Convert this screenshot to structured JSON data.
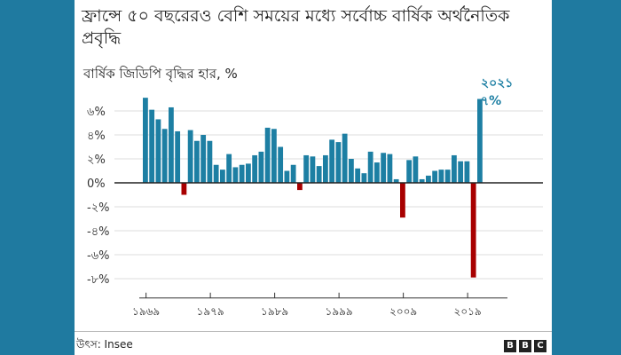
{
  "title": "ফ্রান্সে ৫০ বছরেরও বেশি সময়ের মধ্যে সর্বোচ্চ বার্ষিক অর্থনৈতিক প্রবৃদ্ধি",
  "source": "উৎস: Insee",
  "brand": [
    "B",
    "B",
    "C"
  ],
  "colors": {
    "positive": "#1d7fa3",
    "negative": "#a80000",
    "background": "#1f7aa0"
  },
  "chart_data": {
    "type": "bar",
    "ylabel": "বার্ষিক জিডিপি বৃদ্ধির হার, %",
    "ylim": [
      -8.5,
      8
    ],
    "yticks": [
      6,
      4,
      2,
      0,
      -2,
      -4,
      -6,
      -8
    ],
    "ytick_labels": [
      "৬%",
      "৪%",
      "২%",
      "0%",
      "-২%",
      "-৪%",
      "-৬%",
      "-৮%"
    ],
    "xtick_years": [
      1969,
      1979,
      1989,
      1999,
      2009,
      2019
    ],
    "xtick_labels": [
      "১৯৬৯",
      "১৯৭৯",
      "১৯৮৯",
      "১৯৯৯",
      "২০০৯",
      "২০১৯"
    ],
    "grid": true,
    "years": [
      1969,
      1970,
      1971,
      1972,
      1973,
      1974,
      1975,
      1976,
      1977,
      1978,
      1979,
      1980,
      1981,
      1982,
      1983,
      1984,
      1985,
      1986,
      1987,
      1988,
      1989,
      1990,
      1991,
      1992,
      1993,
      1994,
      1995,
      1996,
      1997,
      1998,
      1999,
      2000,
      2001,
      2002,
      2003,
      2004,
      2005,
      2006,
      2007,
      2008,
      2009,
      2010,
      2011,
      2012,
      2013,
      2014,
      2015,
      2016,
      2017,
      2018,
      2019,
      2020,
      2021
    ],
    "values": [
      7.1,
      6.1,
      5.3,
      4.5,
      6.3,
      4.3,
      -1.0,
      4.4,
      3.5,
      4.0,
      3.5,
      1.5,
      1.1,
      2.4,
      1.3,
      1.5,
      1.6,
      2.3,
      2.6,
      4.6,
      4.5,
      3.0,
      1.0,
      1.5,
      -0.6,
      2.3,
      2.2,
      1.4,
      2.3,
      3.6,
      3.4,
      4.1,
      2.0,
      1.2,
      0.8,
      2.6,
      1.7,
      2.5,
      2.4,
      0.3,
      -2.9,
      1.9,
      2.2,
      0.3,
      0.6,
      1.0,
      1.1,
      1.1,
      2.3,
      1.8,
      1.8,
      -7.9,
      7.0
    ],
    "annotation": {
      "year_label": "২০২১",
      "value_label": "৭%"
    }
  }
}
